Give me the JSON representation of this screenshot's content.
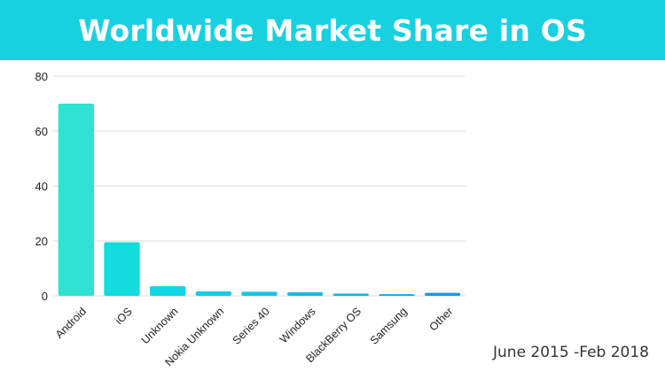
{
  "header": {
    "title": "Worldwide Market Share in OS"
  },
  "footer": {
    "date_range": "June 2015 -Feb 2018"
  },
  "colors": {
    "banner": "#18d1e0",
    "grid": "#dddddd"
  },
  "chart_data": {
    "type": "bar",
    "title": "Worldwide Market Share in OS",
    "xlabel": "",
    "ylabel": "",
    "ylim": [
      0,
      80
    ],
    "yticks": [
      0,
      20,
      40,
      60,
      80
    ],
    "grid": true,
    "categories": [
      "Android",
      "iOS",
      "Unknown",
      "Nokia Unknown",
      "Series 40",
      "Windows",
      "BlackBerry OS",
      "Samsung",
      "Other"
    ],
    "values": [
      70,
      19.5,
      3.5,
      1.6,
      1.5,
      1.3,
      0.8,
      0.6,
      1.1
    ],
    "bar_colors": [
      "#2ee3d2",
      "#12dcdc",
      "#10d4e2",
      "#14cbe6",
      "#18c3e8",
      "#16b9e8",
      "#1aaee8",
      "#18a5e6",
      "#1a98e2"
    ]
  }
}
